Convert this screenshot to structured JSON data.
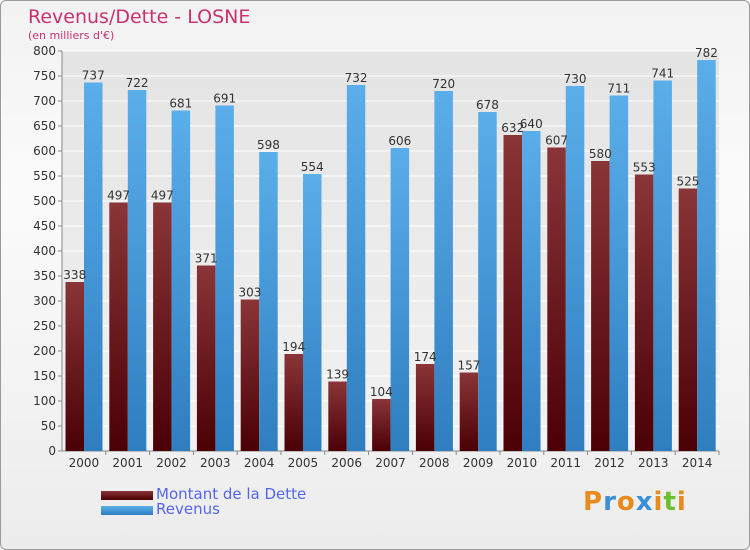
{
  "header": {
    "title": "Revenus/Dette - LOSNE",
    "subtitle": "(en milliers d'€)"
  },
  "legend": [
    {
      "label": "Montant de la Dette",
      "color": "#6a1418"
    },
    {
      "label": "Revenus",
      "color": "#4aa2e6"
    }
  ],
  "logo": {
    "text": "Proxiti"
  },
  "colors": {
    "dette_light": "#8a3538",
    "dette_dark": "#4a0005",
    "revenus_light": "#5aaee9",
    "revenus_dark": "#2f7ec0",
    "label_text": "#333333",
    "axis_text": "#333333",
    "grid": "#ffffff"
  },
  "chart_data": {
    "type": "bar",
    "title": "Revenus/Dette - LOSNE",
    "subtitle": "(en milliers d'€)",
    "categories": [
      "2000",
      "2001",
      "2002",
      "2003",
      "2004",
      "2005",
      "2006",
      "2007",
      "2008",
      "2009",
      "2010",
      "2011",
      "2012",
      "2013",
      "2014"
    ],
    "series": [
      {
        "name": "Montant de la Dette",
        "values": [
          338,
          497,
          497,
          371,
          303,
          194,
          139,
          104,
          174,
          157,
          632,
          607,
          580,
          553,
          525
        ]
      },
      {
        "name": "Revenus",
        "values": [
          737,
          722,
          681,
          691,
          598,
          554,
          732,
          606,
          720,
          678,
          640,
          730,
          711,
          741,
          782
        ]
      }
    ],
    "ylim": [
      0,
      800
    ],
    "yticks": [
      0,
      50,
      100,
      150,
      200,
      250,
      300,
      350,
      400,
      450,
      500,
      550,
      600,
      650,
      700,
      750,
      800
    ],
    "grid": true,
    "legend_position": "bottom-left"
  }
}
